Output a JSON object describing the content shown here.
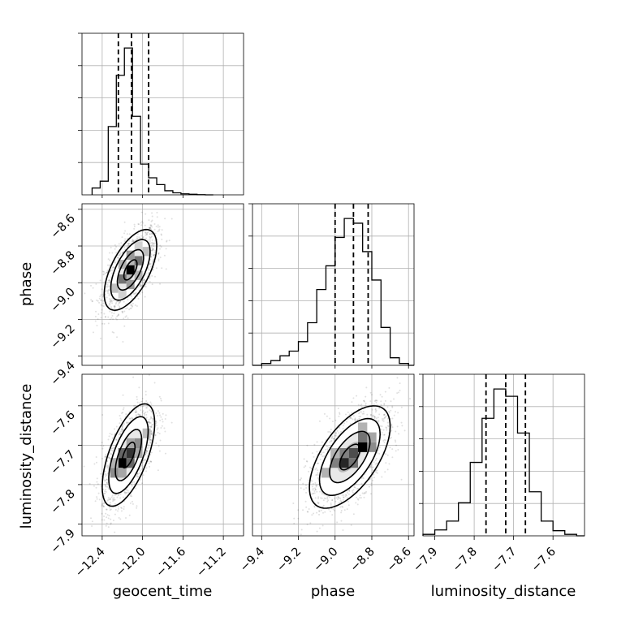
{
  "chart_data": {
    "type": "corner",
    "parameters": [
      "geocent_time",
      "phase",
      "luminosity_distance"
    ],
    "axis_ticks": {
      "geocent_time": [
        "−12.4",
        "−12.0",
        "−11.6",
        "−11.2"
      ],
      "phase": [
        "−8.6",
        "−8.8",
        "−9.0",
        "−9.2",
        "−9.4"
      ],
      "phase_bottom": [
        "−9.4",
        "−9.2",
        "−9.0",
        "−8.8",
        "−8.6"
      ],
      "luminosity_distance": [
        "−7.6",
        "−7.7",
        "−7.8",
        "−7.9"
      ],
      "luminosity_distance_bottom": [
        "−7.9",
        "−7.8",
        "−7.7",
        "−7.6"
      ]
    },
    "ranges": {
      "geocent_time": [
        -12.6,
        -11.0
      ],
      "phase": [
        -9.45,
        -8.57
      ],
      "luminosity_distance": [
        -7.93,
        -7.52
      ]
    },
    "grid": true,
    "histograms": [
      {
        "parameter": "geocent_time",
        "edges": [
          -12.5,
          -12.42,
          -12.34,
          -12.26,
          -12.18,
          -12.1,
          -12.02,
          -11.94,
          -11.86,
          -11.78,
          -11.7,
          -11.62,
          -11.54,
          -11.46,
          -11.38,
          -11.3
        ],
        "heights": [
          1,
          2,
          10,
          17.5,
          21.5,
          11.5,
          4.5,
          2.5,
          1.5,
          0.6,
          0.3,
          0.15,
          0.08,
          0.03,
          0
        ],
        "quantiles": [
          -12.24,
          -12.11,
          -11.94
        ]
      },
      {
        "parameter": "phase",
        "edges": [
          -9.45,
          -9.4,
          -9.35,
          -9.3,
          -9.25,
          -9.2,
          -9.15,
          -9.1,
          -9.05,
          -9.0,
          -8.95,
          -8.9,
          -8.85,
          -8.8,
          -8.75,
          -8.7,
          -8.65,
          -8.6,
          -8.57
        ],
        "heights": [
          0,
          0.2,
          0.5,
          1,
          1.5,
          2.5,
          4.5,
          8,
          10.5,
          13.5,
          15.5,
          15,
          12,
          9,
          4,
          0.8,
          0.2,
          0
        ],
        "quantiles": [
          -9.0,
          -8.9,
          -8.82
        ]
      },
      {
        "parameter": "luminosity_distance",
        "edges": [
          -7.93,
          -7.9,
          -7.87,
          -7.84,
          -7.81,
          -7.78,
          -7.75,
          -7.72,
          -7.69,
          -7.66,
          -7.63,
          -7.6,
          -7.57,
          -7.54,
          -7.52
        ],
        "heights": [
          0.2,
          0.8,
          2,
          4.5,
          10,
          16,
          20,
          19,
          14,
          6,
          2,
          0.7,
          0.2,
          0
        ],
        "quantiles": [
          -7.77,
          -7.72,
          -7.67
        ]
      }
    ],
    "joint": [
      {
        "x": "geocent_time",
        "y": "phase",
        "mean": [
          -12.12,
          -8.93
        ],
        "sd": [
          0.13,
          0.11
        ],
        "rho": 0.6,
        "cells": [
          [
            -12.12,
            -8.93,
            1.0
          ],
          [
            -12.04,
            -8.88,
            0.55
          ],
          [
            -12.2,
            -8.98,
            0.55
          ],
          [
            -12.12,
            -8.85,
            0.4
          ],
          [
            -12.12,
            -9.01,
            0.4
          ],
          [
            -12.04,
            -8.96,
            0.3
          ],
          [
            -12.2,
            -8.9,
            0.3
          ],
          [
            -11.96,
            -8.83,
            0.25
          ],
          [
            -12.28,
            -9.03,
            0.25
          ],
          [
            -12.2,
            -9.06,
            0.18
          ],
          [
            -12.04,
            -8.8,
            0.18
          ]
        ]
      },
      {
        "x": "geocent_time",
        "y": "luminosity_distance",
        "mean": [
          -12.14,
          -7.725
        ],
        "sd": [
          0.13,
          0.065
        ],
        "rho": 0.62,
        "cells": [
          [
            -12.2,
            -7.745,
            1.0
          ],
          [
            -12.12,
            -7.72,
            0.8
          ],
          [
            -12.2,
            -7.72,
            0.6
          ],
          [
            -12.12,
            -7.745,
            0.6
          ],
          [
            -12.04,
            -7.695,
            0.45
          ],
          [
            -12.28,
            -7.77,
            0.45
          ],
          [
            -12.04,
            -7.72,
            0.35
          ],
          [
            -12.2,
            -7.77,
            0.35
          ],
          [
            -11.96,
            -7.67,
            0.25
          ],
          [
            -12.12,
            -7.695,
            0.35
          ],
          [
            -12.28,
            -7.745,
            0.3
          ]
        ]
      },
      {
        "x": "phase",
        "y": "luminosity_distance",
        "mean": [
          -8.92,
          -7.73
        ],
        "sd": [
          0.11,
          0.065
        ],
        "rho": 0.6,
        "cells": [
          [
            -8.85,
            -7.705,
            1.0
          ],
          [
            -8.95,
            -7.745,
            0.85
          ],
          [
            -8.9,
            -7.72,
            0.7
          ],
          [
            -9.0,
            -7.745,
            0.5
          ],
          [
            -8.85,
            -7.68,
            0.55
          ],
          [
            -8.9,
            -7.745,
            0.55
          ],
          [
            -8.95,
            -7.72,
            0.5
          ],
          [
            -8.8,
            -7.705,
            0.45
          ],
          [
            -8.8,
            -7.68,
            0.35
          ],
          [
            -9.05,
            -7.77,
            0.3
          ],
          [
            -8.85,
            -7.655,
            0.3
          ],
          [
            -9.0,
            -7.72,
            0.3
          ]
        ]
      }
    ],
    "contour_levels_sigma": [
      0.5,
      1.0,
      1.5,
      2.0
    ]
  }
}
